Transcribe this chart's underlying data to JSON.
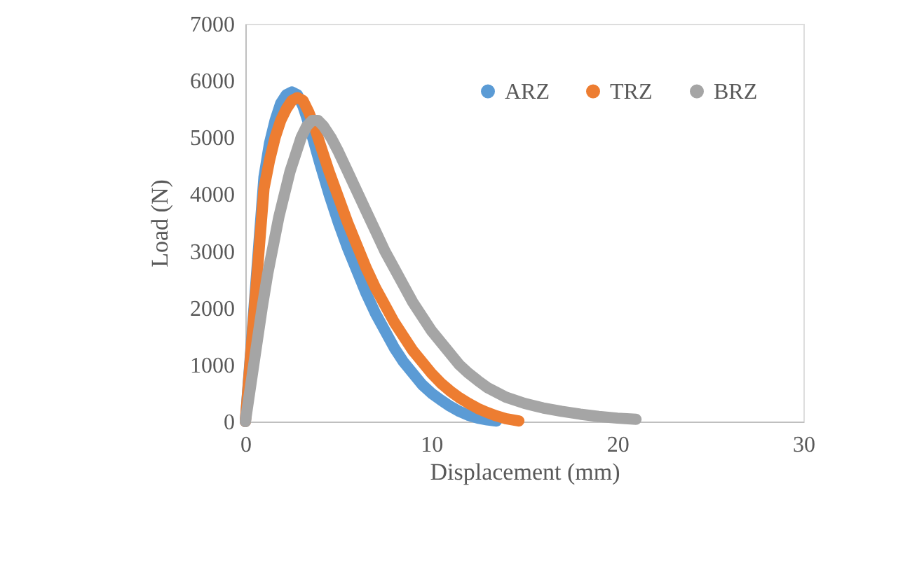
{
  "chart_data": {
    "type": "line",
    "xlabel": "Displacement (mm)",
    "ylabel": "Load (N)",
    "xlim": [
      0,
      30
    ],
    "xticks": [
      0,
      10,
      20,
      30
    ],
    "ylim": [
      0,
      7000
    ],
    "yticks": [
      0,
      1000,
      2000,
      3000,
      4000,
      5000,
      6000,
      7000
    ],
    "grid": false,
    "legend": "top right",
    "line_style": "solid",
    "series": [
      {
        "name": "ARZ",
        "color": "#5b9bd5",
        "x": [
          0,
          1.0,
          1.3,
          1.6,
          1.9,
          2.2,
          2.5,
          2.8,
          3.1,
          3.4,
          3.7,
          4.0,
          4.5,
          5,
          5.5,
          6,
          6.5,
          7,
          7.5,
          8,
          8.5,
          9,
          9.5,
          10,
          10.5,
          11,
          11.5,
          12,
          12.5,
          13,
          13.5
        ],
        "values": [
          0,
          4300,
          4900,
          5300,
          5600,
          5750,
          5800,
          5750,
          5550,
          5250,
          4900,
          4550,
          4000,
          3500,
          3050,
          2650,
          2250,
          1900,
          1600,
          1300,
          1050,
          850,
          650,
          500,
          380,
          270,
          180,
          110,
          60,
          30,
          10
        ]
      },
      {
        "name": "TRZ",
        "color": "#ed7d31",
        "x": [
          0,
          1.0,
          1.3,
          1.6,
          1.9,
          2.2,
          2.5,
          2.8,
          3.1,
          3.4,
          3.7,
          4.0,
          4.5,
          5,
          5.5,
          6,
          6.5,
          7,
          7.5,
          8,
          8.5,
          9,
          9.5,
          10,
          10.5,
          11,
          11.5,
          12,
          12.5,
          13,
          13.5,
          14,
          14.7
        ],
        "values": [
          0,
          4100,
          4600,
          5000,
          5300,
          5500,
          5650,
          5700,
          5650,
          5450,
          5200,
          4900,
          4400,
          3950,
          3500,
          3100,
          2700,
          2350,
          2050,
          1750,
          1500,
          1250,
          1050,
          850,
          680,
          540,
          420,
          320,
          230,
          160,
          100,
          50,
          10
        ]
      },
      {
        "name": "BRZ",
        "color": "#a5a5a5",
        "x": [
          0,
          0.9,
          1.2,
          1.5,
          1.8,
          2.1,
          2.4,
          2.7,
          3.0,
          3.3,
          3.6,
          3.9,
          4.2,
          4.6,
          5,
          5.5,
          6,
          6.5,
          7,
          7.5,
          8,
          8.5,
          9,
          9.5,
          10,
          10.5,
          11,
          11.5,
          12,
          12.5,
          13,
          14,
          15,
          16,
          17,
          18,
          19,
          20,
          21
        ],
        "values": [
          0,
          2000,
          2600,
          3100,
          3600,
          4000,
          4400,
          4700,
          5000,
          5200,
          5300,
          5300,
          5200,
          5000,
          4750,
          4400,
          4050,
          3700,
          3350,
          3000,
          2700,
          2400,
          2100,
          1850,
          1600,
          1400,
          1200,
          1000,
          850,
          720,
          600,
          430,
          320,
          240,
          180,
          130,
          90,
          60,
          40
        ]
      }
    ]
  }
}
